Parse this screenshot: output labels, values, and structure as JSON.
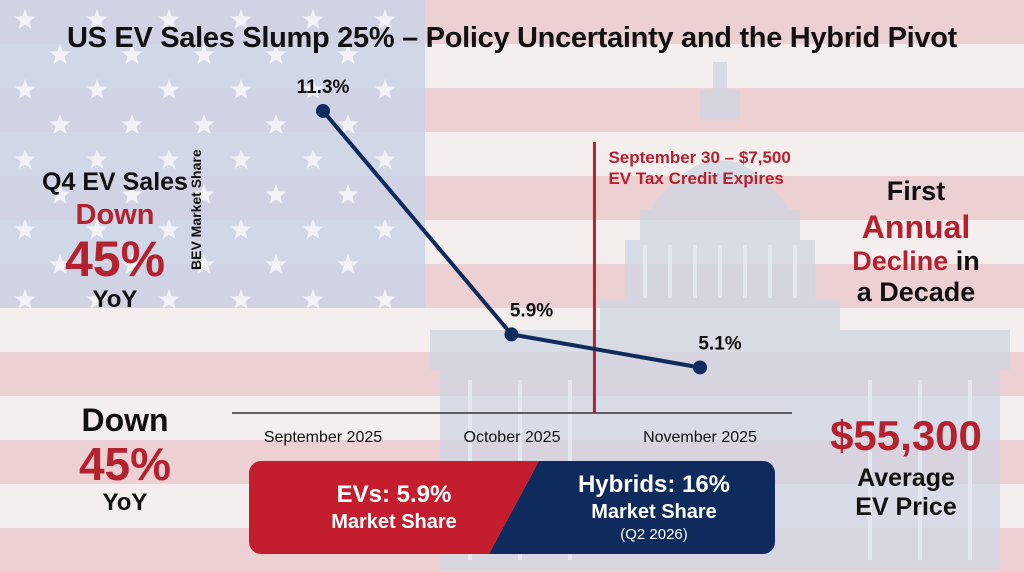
{
  "title": "US EV Sales Slump 25% – Policy Uncertainty and the Hybrid Pivot",
  "left_stat_top": {
    "line1": "Q4 EV Sales",
    "line2": "Down",
    "line3": "45%",
    "line4": "YoY"
  },
  "left_stat_bottom": {
    "line1": "Down",
    "line2": "45%",
    "line3": "YoY"
  },
  "right_stat_top": {
    "line1": "First",
    "line2": "Annual",
    "line3": "Decline",
    "line3b": " in",
    "line4": "a Decade"
  },
  "right_stat_bottom": {
    "value": "$55,300",
    "line1": "Average",
    "line2": "EV Price"
  },
  "banner": {
    "left": {
      "value": "EVs: 5.9%",
      "label": "Market Share"
    },
    "right": {
      "value": "Hybrids: 16%",
      "label": "Market Share",
      "note": "(Q2 2026)"
    },
    "colors": {
      "left": "#c41e2e",
      "right": "#0f2a5c"
    }
  },
  "colors": {
    "accent_red": "#b5222f",
    "navy": "#0f2a5c"
  },
  "chart_data": {
    "type": "line",
    "categories": [
      "September 2025",
      "October 2025",
      "November 2025"
    ],
    "x_positions": [
      0,
      1,
      2
    ],
    "series": [
      {
        "values": [
          11.3,
          5.9,
          5.1
        ],
        "labels": [
          "11.3%",
          "5.9%",
          "5.1%"
        ]
      }
    ],
    "ylabel": "BEV Market Share",
    "ylim": [
      4,
      12
    ],
    "annotation": {
      "line1": "September 30 – $7,500",
      "line2": "EV Tax Credit Expires",
      "x": 0.72
    },
    "grid": false
  }
}
